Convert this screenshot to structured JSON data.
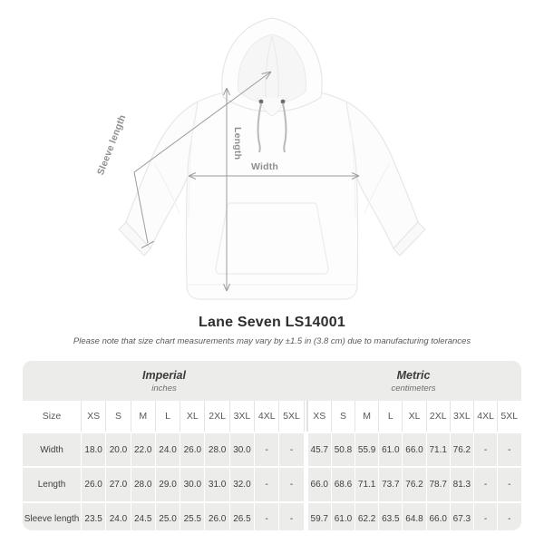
{
  "product": {
    "title": "Lane Seven LS14001",
    "tolerance_note": "Please note that size chart measurements may vary by ±1.5 in (3.8 cm) due to manufacturing tolerances"
  },
  "annotations": {
    "sleeve_length_label": "Sleeve length",
    "length_label": "Length",
    "width_label": "Width"
  },
  "table": {
    "unit_groups": [
      {
        "label": "Imperial",
        "sublabel": "inches"
      },
      {
        "label": "Metric",
        "sublabel": "centimeters"
      }
    ],
    "size_header": "Size",
    "sizes": [
      "XS",
      "S",
      "M",
      "L",
      "XL",
      "2XL",
      "3XL",
      "4XL",
      "5XL"
    ],
    "rows": [
      {
        "label": "Width",
        "imperial": [
          "18.0",
          "20.0",
          "22.0",
          "24.0",
          "26.0",
          "28.0",
          "30.0",
          "-",
          "-"
        ],
        "metric": [
          "45.7",
          "50.8",
          "55.9",
          "61.0",
          "66.0",
          "71.1",
          "76.2",
          "-",
          "-"
        ]
      },
      {
        "label": "Length",
        "imperial": [
          "26.0",
          "27.0",
          "28.0",
          "29.0",
          "30.0",
          "31.0",
          "32.0",
          "-",
          "-"
        ],
        "metric": [
          "66.0",
          "68.6",
          "71.1",
          "73.7",
          "76.2",
          "78.7",
          "81.3",
          "-",
          "-"
        ]
      },
      {
        "label": "Sleeve length",
        "imperial": [
          "23.5",
          "24.0",
          "24.5",
          "25.0",
          "25.5",
          "26.0",
          "26.5",
          "-",
          "-"
        ],
        "metric": [
          "59.7",
          "61.0",
          "62.2",
          "63.5",
          "64.8",
          "66.0",
          "67.3",
          "-",
          "-"
        ]
      }
    ]
  },
  "colors": {
    "table_background": "#ececeb",
    "row_separator": "#ffffff",
    "annotation_gray": "#9c9c9c",
    "title_text": "#2e2e2e"
  }
}
